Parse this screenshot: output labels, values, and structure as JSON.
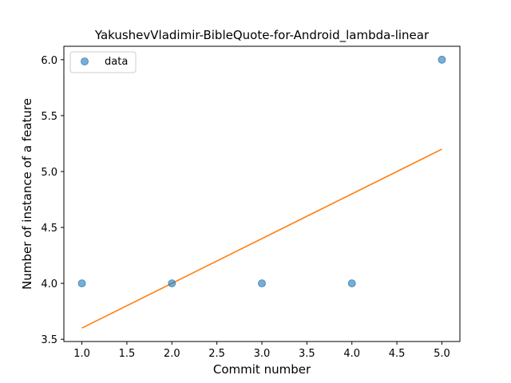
{
  "chart_data": {
    "type": "scatter",
    "title": "YakushevVladimir-BibleQuote-for-Android_lambda-linear",
    "xlabel": "Commit number",
    "ylabel": "Number of instance of a feature",
    "xlim": [
      0.8,
      5.2
    ],
    "ylim": [
      3.48,
      6.12
    ],
    "xticks": [
      "1.0",
      "1.5",
      "2.0",
      "2.5",
      "3.0",
      "3.5",
      "4.0",
      "4.5",
      "5.0"
    ],
    "yticks": [
      "3.5",
      "4.0",
      "4.5",
      "5.0",
      "5.5",
      "6.0"
    ],
    "grid": false,
    "legend_position": "top-left",
    "series": [
      {
        "name": "data",
        "kind": "scatter",
        "color": "#1f77b4",
        "x": [
          1,
          2,
          3,
          4,
          5
        ],
        "y": [
          4,
          4,
          4,
          4,
          6
        ]
      },
      {
        "kind": "line",
        "color": "#ff7f0e",
        "x": [
          1,
          5
        ],
        "y": [
          3.6,
          5.2
        ]
      }
    ]
  }
}
